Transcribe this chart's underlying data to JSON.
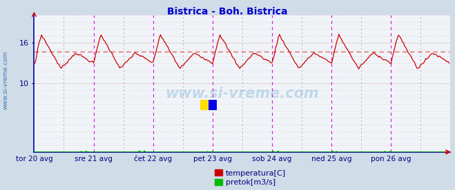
{
  "title": "Bistrica - Boh. Bistrica",
  "title_color": "#0000cc",
  "title_fontsize": 10,
  "bg_color": "#d0dce8",
  "plot_bg_color": "#f0f4f8",
  "y_label_color": "#000080",
  "x_label_color": "#000080",
  "sidebar_text": "www.si-vreme.com",
  "sidebar_color": "#2266aa",
  "watermark_text": "www.si-vreme.com",
  "xlim": [
    0,
    336
  ],
  "ylim": [
    0,
    20
  ],
  "yticks": [
    10,
    16
  ],
  "grid_color": "#cc9999",
  "grid_minor_color": "#ddbbbb",
  "vline_magenta_color": "#dd00dd",
  "vline_dark_color": "#555555",
  "avg_line_color": "#dd4444",
  "avg_line_value": 14.7,
  "temp_color": "#cc0000",
  "flow_color": "#00bb00",
  "x_tick_positions": [
    0,
    48,
    96,
    144,
    192,
    240,
    288
  ],
  "x_tick_labels": [
    "tor 20 avg",
    "sre 21 avg",
    "čet 22 avg",
    "pet 23 avg",
    "sob 24 avg",
    "ned 25 avg",
    "pon 26 avg"
  ],
  "legend_temp_color": "#cc0000",
  "legend_flow_color": "#00bb00",
  "legend_temp_label": "temperatura[C]",
  "legend_flow_label": "pretok[m3/s]"
}
